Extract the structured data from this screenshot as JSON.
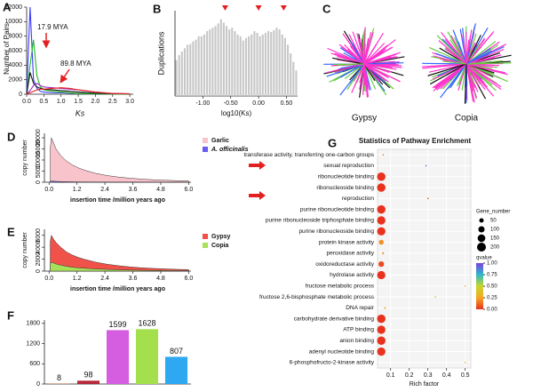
{
  "panel_labels": [
    "A",
    "B",
    "C",
    "D",
    "E",
    "F",
    "G"
  ],
  "chart_data": [
    {
      "type": "line",
      "ylabel": "Number of Pairs",
      "xlabel": "Ks",
      "x": [
        0,
        0.1,
        0.2,
        0.3,
        0.4,
        0.5,
        0.75,
        1,
        1.25,
        1.5,
        2,
        2.5,
        3
      ],
      "series": [
        {
          "color": "#3a3aff",
          "values": [
            0,
            12000,
            2000,
            800,
            400,
            300,
            200,
            200,
            150,
            100,
            50,
            30,
            20
          ]
        },
        {
          "color": "#22bb22",
          "values": [
            0,
            4000,
            7500,
            2500,
            1000,
            600,
            400,
            300,
            200,
            100,
            50,
            20,
            10
          ]
        },
        {
          "color": "#111111",
          "values": [
            0,
            3000,
            1500,
            1000,
            800,
            700,
            600,
            500,
            400,
            300,
            150,
            80,
            50
          ]
        },
        {
          "color": "#9b30c8",
          "values": [
            0,
            500,
            1200,
            1500,
            1200,
            1000,
            900,
            800,
            700,
            600,
            300,
            100,
            50
          ]
        },
        {
          "color": "#e82020",
          "values": [
            0,
            200,
            400,
            600,
            700,
            700,
            800,
            900,
            800,
            600,
            300,
            100,
            50
          ]
        }
      ],
      "annotations": [
        "17.9 MYA",
        "89.8 MYA"
      ],
      "xlim": [
        0,
        3.1
      ],
      "ylim": [
        0,
        12000
      ],
      "xticks": [
        {
          "value": 0,
          "label": "0.0"
        },
        0.5,
        {
          "value": 1,
          "label": "1.0"
        },
        1.5,
        {
          "value": 2,
          "label": "2.0"
        },
        2.5,
        {
          "value": 3,
          "label": "3.0"
        }
      ],
      "yticks": [
        0,
        2000,
        4000,
        6000,
        8000,
        10000,
        12000
      ]
    },
    {
      "type": "histogram",
      "ylabel": "Duplications",
      "xlabel": "log10(Ks)",
      "color": "#c8c8c8",
      "bins": [
        -1.5,
        -1.45,
        -1.4,
        -1.35,
        -1.3,
        -1.25,
        -1.2,
        -1.15,
        -1.1,
        -1.05,
        -1,
        -0.95,
        -0.9,
        -0.85,
        -0.8,
        -0.75,
        -0.7,
        -0.65,
        -0.6,
        -0.55,
        -0.5,
        -0.45,
        -0.4,
        -0.35,
        -0.3,
        -0.25,
        -0.2,
        -0.15,
        -0.1,
        -0.05,
        0,
        0.05,
        0.1,
        0.15,
        0.2,
        0.25,
        0.3,
        0.35,
        0.4,
        0.45,
        0.5,
        0.55,
        0.6,
        0.65,
        0.7
      ],
      "values": [
        420,
        480,
        520,
        560,
        600,
        610,
        640,
        660,
        700,
        700,
        720,
        760,
        780,
        800,
        820,
        850,
        900,
        860,
        820,
        780,
        800,
        760,
        720,
        700,
        650,
        680,
        700,
        720,
        760,
        740,
        700,
        720,
        740,
        760,
        750,
        770,
        800,
        780,
        720,
        680,
        600,
        500,
        400,
        300
      ],
      "markers": [
        -0.6,
        0,
        0.45
      ],
      "marker_color": "#e32020",
      "xlim": [
        -1.5,
        0.7
      ],
      "ylim": [
        0,
        1000
      ],
      "xticks": [
        {
          "value": -1,
          "label": "-1.00"
        },
        {
          "value": -0.5,
          "label": "-0.50"
        },
        {
          "value": 0,
          "label": "0.00"
        },
        {
          "value": 0.5,
          "label": "0.50"
        }
      ]
    },
    {
      "type": "tree",
      "labels": [
        "Gypsy",
        "Copia"
      ]
    },
    {
      "type": "area",
      "ylabel": "copy number",
      "xlabel": "insertion time /million years ago",
      "x": [
        0.05,
        0.1,
        0.2,
        0.3,
        0.5,
        0.75,
        1,
        1.25,
        1.5,
        2,
        2.5,
        3,
        3.5,
        4,
        4.5,
        5,
        5.5,
        6
      ],
      "series": [
        {
          "name": "Garlic",
          "color": "#f9c3cb",
          "values": [
            15000,
            20000,
            17500,
            15000,
            12000,
            9500,
            7800,
            6500,
            5500,
            4000,
            3000,
            2300,
            1800,
            1400,
            1100,
            900,
            700,
            600
          ]
        },
        {
          "name": "A. officinalis",
          "color": "#6a5cf0",
          "values": [
            400,
            500,
            450,
            380,
            300,
            230,
            180,
            150,
            120,
            90,
            70,
            50,
            40,
            30,
            25,
            20,
            15,
            10
          ]
        }
      ],
      "xlim": [
        -0.2,
        6.1
      ],
      "ylim": [
        0,
        22000
      ],
      "xticks": [
        {
          "value": 0,
          "label": "0.0"
        },
        1.2,
        2.4,
        3.6,
        4.8,
        {
          "value": 6,
          "label": "6.0"
        }
      ],
      "yticks": [
        0,
        5000,
        10000,
        15000,
        20000
      ]
    },
    {
      "type": "area",
      "ylabel": "copy number",
      "xlabel": "insertion time /million years ago",
      "x": [
        0.05,
        0.1,
        0.2,
        0.3,
        0.5,
        0.75,
        1,
        1.25,
        1.5,
        2,
        2.5,
        3,
        3.5,
        4,
        4.5,
        5,
        5.5,
        6
      ],
      "series": [
        {
          "name": "Gypsy",
          "color": "#f0524a",
          "values": [
            5000,
            6000,
            5300,
            4800,
            4000,
            3200,
            2700,
            2300,
            2000,
            1500,
            1150,
            900,
            700,
            550,
            450,
            370,
            300,
            250
          ]
        },
        {
          "name": "Copia",
          "color": "#a8e05a",
          "values": [
            1200,
            1500,
            1350,
            1200,
            1000,
            800,
            650,
            550,
            480,
            360,
            280,
            220,
            170,
            140,
            110,
            90,
            75,
            60
          ]
        }
      ],
      "xlim": [
        -0.2,
        6.1
      ],
      "ylim": [
        0,
        7000
      ],
      "xticks": [
        {
          "value": 0,
          "label": "0.0"
        },
        1.2,
        2.4,
        3.6,
        4.8,
        {
          "value": 6,
          "label": "6.0"
        }
      ],
      "yticks": [
        0,
        2000,
        4000,
        6000
      ]
    },
    {
      "type": "bar",
      "values": [
        8,
        98,
        1599,
        1628,
        807
      ],
      "colors": [
        "#e8742a",
        "#b5283a",
        "#d55ee0",
        "#a4e04e",
        "#2ea8f0"
      ],
      "ylim": [
        0,
        1900
      ],
      "yticks": [
        0,
        600,
        1200,
        1800
      ]
    },
    {
      "type": "bubble",
      "title": "Statistics of Pathway Enrichment",
      "xlabel": "Rich factor",
      "categories": [
        "transferase activity, transferring one-carbon groups",
        "sexual reproduction",
        "ribonucleotide binding",
        "ribonucleoside binding",
        "reproduction",
        "purine ribonucleotide binding",
        "purine ribonucleoside triphosphate binding",
        "purine ribonucleoside binding",
        "protein kinase activity",
        "peroxidase activity",
        "oxidoreductase activity",
        "hydrolase activity",
        "fructose metabolic process",
        "fructose 2,6-bisphosphate metabolic process",
        "DNA repair",
        "carbohydrate derivative binding",
        "ATP binding",
        "anion binding",
        "adenyl nucleotide binding",
        "6-phosphofructo-2-kinase activity"
      ],
      "rich_factor": [
        0.06,
        0.29,
        0.05,
        0.05,
        0.3,
        0.05,
        0.05,
        0.05,
        0.05,
        0.06,
        0.05,
        0.05,
        0.5,
        0.34,
        0.07,
        0.05,
        0.05,
        0.05,
        0.05,
        0.5
      ],
      "gene_number": [
        5,
        5,
        180,
        180,
        5,
        180,
        175,
        175,
        60,
        10,
        80,
        170,
        3,
        3,
        8,
        180,
        175,
        180,
        175,
        3
      ],
      "qvalue": [
        0.15,
        0.9,
        0,
        0,
        0.05,
        0,
        0,
        0,
        0.2,
        0.2,
        0.05,
        0,
        0.3,
        0.3,
        0.25,
        0,
        0,
        0,
        0,
        0.3
      ],
      "size_title": "Gene_number",
      "size_ticks": [
        50,
        100,
        150,
        200
      ],
      "color_title": "qvalue",
      "color_scale": [
        "#e8321e",
        "#f5a623",
        "#c8d62b",
        "#2fb8c6",
        "#7b3fe4"
      ],
      "clim": [
        0,
        1
      ],
      "cticks": [
        {
          "value": 0,
          "label": "0.00"
        },
        0.25,
        {
          "value": 0.5,
          "label": "0.50"
        },
        0.75,
        {
          "value": 1,
          "label": "1.00"
        }
      ],
      "xlim": [
        0.03,
        0.53
      ],
      "xticks": [
        0.1,
        0.2,
        0.3,
        0.4,
        0.5
      ]
    }
  ]
}
